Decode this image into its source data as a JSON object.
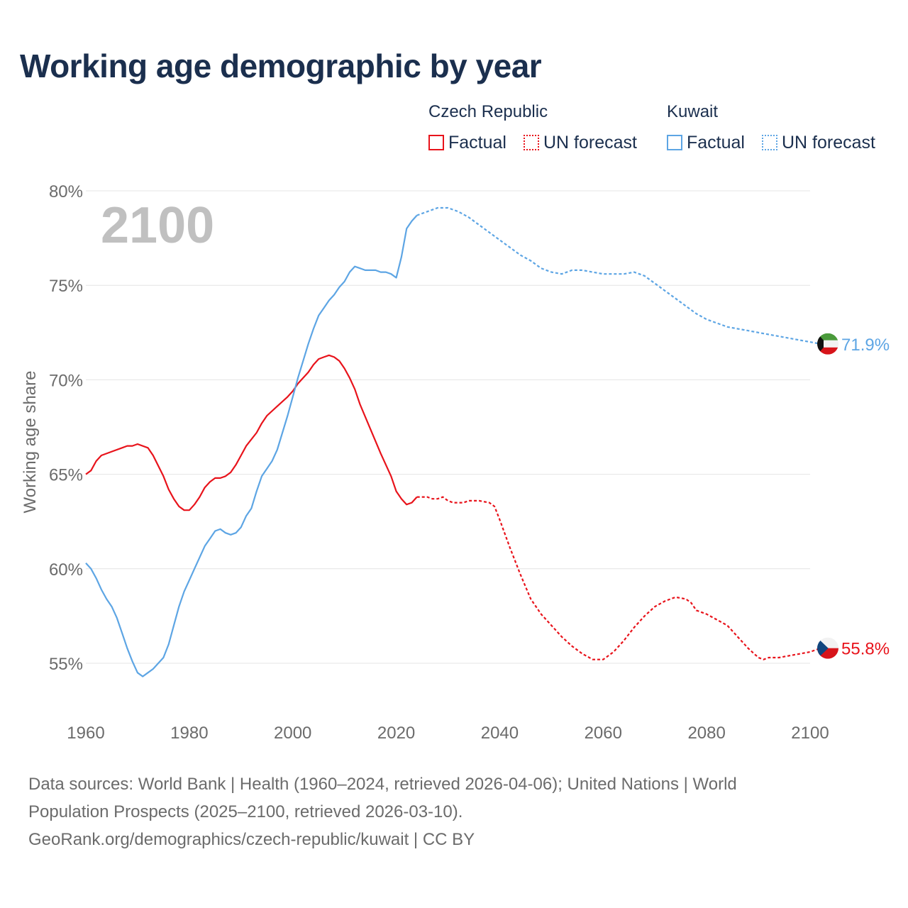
{
  "title": "Working age demographic by year",
  "legend": {
    "groups": [
      {
        "name": "Czech Republic",
        "factual_label": "Factual",
        "forecast_label": "UN forecast"
      },
      {
        "name": "Kuwait",
        "factual_label": "Factual",
        "forecast_label": "UN forecast"
      }
    ]
  },
  "year_watermark": "2100",
  "colors": {
    "czech": "#e8131b",
    "kuwait": "#5da5e4",
    "watermark": "#c0c0c0"
  },
  "end_labels": {
    "kuwait": "71.9%",
    "czech": "55.8%"
  },
  "chart_data": {
    "type": "line",
    "title": "Working age demographic by year",
    "xlabel": "",
    "ylabel": "Working age share",
    "xlim": [
      1960,
      2100
    ],
    "ylim": [
      52.5,
      80
    ],
    "x_ticks": [
      1960,
      1980,
      2000,
      2020,
      2040,
      2060,
      2080,
      2100
    ],
    "x_tick_labels": [
      "1960",
      "1980",
      "2000",
      "2020",
      "2040",
      "2060",
      "2080",
      "2100"
    ],
    "y_ticks": [
      55,
      60,
      65,
      70,
      75,
      80
    ],
    "y_tick_labels": [
      "55%",
      "60%",
      "65%",
      "70%",
      "75%",
      "80%"
    ],
    "grid": true,
    "factual_until": 2024,
    "series": [
      {
        "name": "Czech Republic",
        "key": "czech",
        "points": [
          [
            1960,
            65.0
          ],
          [
            1961,
            65.2
          ],
          [
            1962,
            65.7
          ],
          [
            1963,
            66.0
          ],
          [
            1965,
            66.2
          ],
          [
            1967,
            66.4
          ],
          [
            1968,
            66.5
          ],
          [
            1969,
            66.5
          ],
          [
            1970,
            66.6
          ],
          [
            1972,
            66.4
          ],
          [
            1973,
            66.0
          ],
          [
            1975,
            64.9
          ],
          [
            1976,
            64.2
          ],
          [
            1977,
            63.7
          ],
          [
            1978,
            63.3
          ],
          [
            1979,
            63.1
          ],
          [
            1980,
            63.1
          ],
          [
            1981,
            63.4
          ],
          [
            1982,
            63.8
          ],
          [
            1983,
            64.3
          ],
          [
            1984,
            64.6
          ],
          [
            1985,
            64.8
          ],
          [
            1986,
            64.8
          ],
          [
            1987,
            64.9
          ],
          [
            1988,
            65.1
          ],
          [
            1989,
            65.5
          ],
          [
            1990,
            66.0
          ],
          [
            1991,
            66.5
          ],
          [
            1993,
            67.2
          ],
          [
            1994,
            67.7
          ],
          [
            1995,
            68.1
          ],
          [
            1997,
            68.6
          ],
          [
            1999,
            69.1
          ],
          [
            2000,
            69.4
          ],
          [
            2001,
            69.8
          ],
          [
            2003,
            70.4
          ],
          [
            2004,
            70.8
          ],
          [
            2005,
            71.1
          ],
          [
            2006,
            71.2
          ],
          [
            2007,
            71.3
          ],
          [
            2008,
            71.2
          ],
          [
            2009,
            71.0
          ],
          [
            2010,
            70.6
          ],
          [
            2011,
            70.1
          ],
          [
            2012,
            69.5
          ],
          [
            2013,
            68.7
          ],
          [
            2015,
            67.4
          ],
          [
            2017,
            66.1
          ],
          [
            2019,
            64.9
          ],
          [
            2020,
            64.1
          ],
          [
            2021,
            63.7
          ],
          [
            2022,
            63.4
          ],
          [
            2023,
            63.5
          ],
          [
            2024,
            63.8
          ],
          [
            2026,
            63.8
          ],
          [
            2027,
            63.7
          ],
          [
            2028,
            63.7
          ],
          [
            2029,
            63.8
          ],
          [
            2030,
            63.6
          ],
          [
            2031,
            63.5
          ],
          [
            2033,
            63.5
          ],
          [
            2034,
            63.6
          ],
          [
            2036,
            63.6
          ],
          [
            2038,
            63.5
          ],
          [
            2039,
            63.3
          ],
          [
            2040,
            62.6
          ],
          [
            2042,
            61.1
          ],
          [
            2044,
            59.7
          ],
          [
            2046,
            58.4
          ],
          [
            2048,
            57.6
          ],
          [
            2050,
            57.0
          ],
          [
            2052,
            56.4
          ],
          [
            2054,
            55.9
          ],
          [
            2056,
            55.5
          ],
          [
            2058,
            55.2
          ],
          [
            2060,
            55.2
          ],
          [
            2062,
            55.6
          ],
          [
            2064,
            56.2
          ],
          [
            2066,
            56.9
          ],
          [
            2068,
            57.5
          ],
          [
            2070,
            58.0
          ],
          [
            2072,
            58.3
          ],
          [
            2074,
            58.5
          ],
          [
            2076,
            58.4
          ],
          [
            2077,
            58.2
          ],
          [
            2078,
            57.8
          ],
          [
            2080,
            57.6
          ],
          [
            2082,
            57.3
          ],
          [
            2084,
            57.0
          ],
          [
            2086,
            56.4
          ],
          [
            2088,
            55.8
          ],
          [
            2090,
            55.3
          ],
          [
            2091,
            55.2
          ],
          [
            2092,
            55.3
          ],
          [
            2094,
            55.3
          ],
          [
            2096,
            55.4
          ],
          [
            2098,
            55.5
          ],
          [
            2100,
            55.6
          ],
          [
            2102,
            55.8
          ],
          [
            2104,
            55.8
          ]
        ]
      },
      {
        "name": "Kuwait",
        "key": "kuwait",
        "points": [
          [
            1960,
            60.3
          ],
          [
            1961,
            60.0
          ],
          [
            1962,
            59.5
          ],
          [
            1963,
            58.9
          ],
          [
            1964,
            58.4
          ],
          [
            1965,
            58.0
          ],
          [
            1966,
            57.4
          ],
          [
            1967,
            56.6
          ],
          [
            1968,
            55.8
          ],
          [
            1969,
            55.1
          ],
          [
            1970,
            54.5
          ],
          [
            1971,
            54.3
          ],
          [
            1972,
            54.5
          ],
          [
            1973,
            54.7
          ],
          [
            1974,
            55.0
          ],
          [
            1975,
            55.3
          ],
          [
            1976,
            56.0
          ],
          [
            1977,
            57.0
          ],
          [
            1978,
            58.0
          ],
          [
            1979,
            58.8
          ],
          [
            1980,
            59.4
          ],
          [
            1981,
            60.0
          ],
          [
            1982,
            60.6
          ],
          [
            1983,
            61.2
          ],
          [
            1984,
            61.6
          ],
          [
            1985,
            62.0
          ],
          [
            1986,
            62.1
          ],
          [
            1987,
            61.9
          ],
          [
            1988,
            61.8
          ],
          [
            1989,
            61.9
          ],
          [
            1990,
            62.2
          ],
          [
            1991,
            62.8
          ],
          [
            1992,
            63.2
          ],
          [
            1993,
            64.1
          ],
          [
            1994,
            64.9
          ],
          [
            1995,
            65.3
          ],
          [
            1996,
            65.7
          ],
          [
            1997,
            66.3
          ],
          [
            1998,
            67.2
          ],
          [
            1999,
            68.1
          ],
          [
            2000,
            69.1
          ],
          [
            2001,
            70.1
          ],
          [
            2002,
            71.0
          ],
          [
            2003,
            71.9
          ],
          [
            2004,
            72.7
          ],
          [
            2005,
            73.4
          ],
          [
            2006,
            73.8
          ],
          [
            2007,
            74.2
          ],
          [
            2008,
            74.5
          ],
          [
            2009,
            74.9
          ],
          [
            2010,
            75.2
          ],
          [
            2011,
            75.7
          ],
          [
            2012,
            76.0
          ],
          [
            2013,
            75.9
          ],
          [
            2014,
            75.8
          ],
          [
            2015,
            75.8
          ],
          [
            2016,
            75.8
          ],
          [
            2017,
            75.7
          ],
          [
            2018,
            75.7
          ],
          [
            2019,
            75.6
          ],
          [
            2020,
            75.4
          ],
          [
            2021,
            76.5
          ],
          [
            2022,
            78.0
          ],
          [
            2023,
            78.4
          ],
          [
            2024,
            78.7
          ],
          [
            2026,
            78.9
          ],
          [
            2028,
            79.1
          ],
          [
            2030,
            79.1
          ],
          [
            2032,
            78.9
          ],
          [
            2034,
            78.6
          ],
          [
            2036,
            78.2
          ],
          [
            2038,
            77.8
          ],
          [
            2040,
            77.4
          ],
          [
            2042,
            77.0
          ],
          [
            2044,
            76.6
          ],
          [
            2046,
            76.3
          ],
          [
            2048,
            75.9
          ],
          [
            2050,
            75.7
          ],
          [
            2052,
            75.6
          ],
          [
            2054,
            75.8
          ],
          [
            2056,
            75.8
          ],
          [
            2058,
            75.7
          ],
          [
            2060,
            75.6
          ],
          [
            2062,
            75.6
          ],
          [
            2064,
            75.6
          ],
          [
            2066,
            75.7
          ],
          [
            2068,
            75.5
          ],
          [
            2070,
            75.1
          ],
          [
            2072,
            74.7
          ],
          [
            2074,
            74.3
          ],
          [
            2076,
            73.9
          ],
          [
            2078,
            73.5
          ],
          [
            2080,
            73.2
          ],
          [
            2082,
            73.0
          ],
          [
            2084,
            72.8
          ],
          [
            2086,
            72.7
          ],
          [
            2088,
            72.6
          ],
          [
            2090,
            72.5
          ],
          [
            2092,
            72.4
          ],
          [
            2094,
            72.3
          ],
          [
            2096,
            72.2
          ],
          [
            2098,
            72.1
          ],
          [
            2100,
            72.0
          ],
          [
            2102,
            71.9
          ],
          [
            2104,
            71.9
          ]
        ]
      }
    ]
  },
  "source_lines": [
    "Data sources: World Bank | Health (1960–2024, retrieved 2026-04-06); United Nations | World",
    "Population Prospects (2025–2100, retrieved 2026-03-10).",
    "GeoRank.org/demographics/czech-republic/kuwait | CC BY"
  ]
}
